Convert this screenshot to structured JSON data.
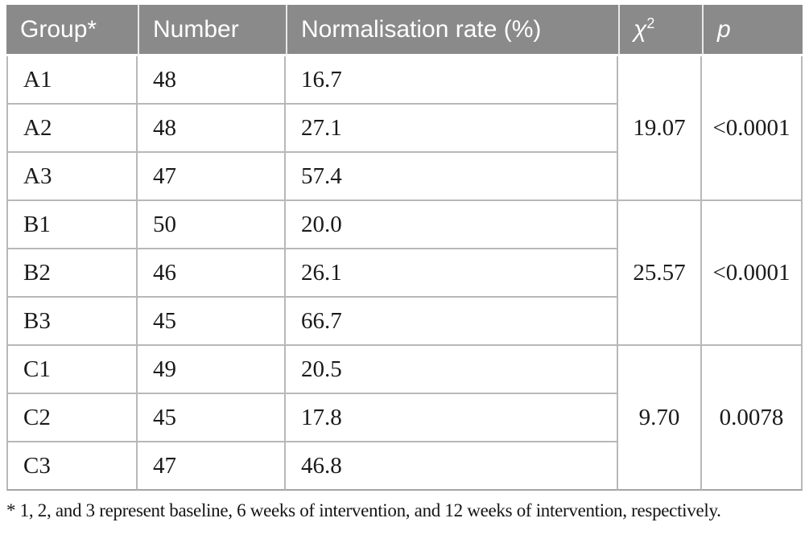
{
  "table": {
    "headers": [
      {
        "label": "Group*"
      },
      {
        "label": "Number"
      },
      {
        "label": "Normalisation rate (%)"
      },
      {
        "label": "χ",
        "sup": "2"
      },
      {
        "label": "p"
      }
    ],
    "groups": [
      {
        "chi2": "19.07",
        "p": "<0.0001",
        "rows": [
          {
            "group": "A1",
            "number": "48",
            "rate": "16.7"
          },
          {
            "group": "A2",
            "number": "48",
            "rate": "27.1"
          },
          {
            "group": "A3",
            "number": "47",
            "rate": "57.4"
          }
        ]
      },
      {
        "chi2": "25.57",
        "p": "<0.0001",
        "rows": [
          {
            "group": "B1",
            "number": "50",
            "rate": "20.0"
          },
          {
            "group": "B2",
            "number": "46",
            "rate": "26.1"
          },
          {
            "group": "B3",
            "number": "45",
            "rate": "66.7"
          }
        ]
      },
      {
        "chi2": "9.70",
        "p": "0.0078",
        "rows": [
          {
            "group": "C1",
            "number": "49",
            "rate": "20.5"
          },
          {
            "group": "C2",
            "number": "45",
            "rate": "17.8"
          },
          {
            "group": "C3",
            "number": "47",
            "rate": "46.8"
          }
        ]
      }
    ]
  },
  "footnote": "* 1, 2, and 3 represent baseline, 6 weeks of intervention, and 12 weeks of intervention, respectively.",
  "colors": {
    "header_bg": "#8a8a8a",
    "header_text": "#ffffff",
    "body_text": "#1a1a1a",
    "border": "#b8b8b8"
  }
}
